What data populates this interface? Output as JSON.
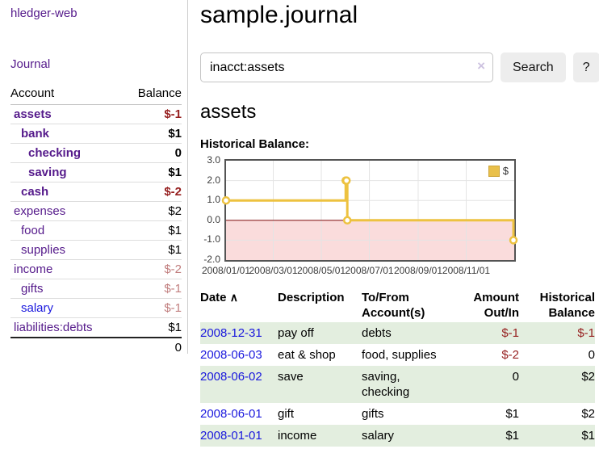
{
  "sidebar": {
    "brand": "hledger-web",
    "nav_journal": "Journal",
    "accounts_table": {
      "header_account": "Account",
      "header_balance": "Balance",
      "rows": [
        {
          "name": "assets",
          "balance": "$-1",
          "indent": 1,
          "bold": true,
          "balance_style": "neg",
          "link_style": "purple"
        },
        {
          "name": "bank",
          "balance": "$1",
          "indent": 2,
          "bold": true,
          "balance_style": "",
          "link_style": "purple"
        },
        {
          "name": "checking",
          "balance": "0",
          "indent": 3,
          "bold": true,
          "balance_style": "",
          "link_style": "purple"
        },
        {
          "name": "saving",
          "balance": "$1",
          "indent": 3,
          "bold": true,
          "balance_style": "",
          "link_style": "purple"
        },
        {
          "name": "cash",
          "balance": "$-2",
          "indent": 2,
          "bold": true,
          "balance_style": "neg",
          "link_style": "purple"
        },
        {
          "name": "expenses",
          "balance": "$2",
          "indent": 1,
          "bold": false,
          "balance_style": "",
          "link_style": "purple"
        },
        {
          "name": "food",
          "balance": "$1",
          "indent": 2,
          "bold": false,
          "balance_style": "",
          "link_style": "purple"
        },
        {
          "name": "supplies",
          "balance": "$1",
          "indent": 2,
          "bold": false,
          "balance_style": "",
          "link_style": "purple"
        },
        {
          "name": "income",
          "balance": "$-2",
          "indent": 1,
          "bold": false,
          "balance_style": "mneg",
          "link_style": "purple"
        },
        {
          "name": "gifts",
          "balance": "$-1",
          "indent": 2,
          "bold": false,
          "balance_style": "mneg",
          "link_style": "purple"
        },
        {
          "name": "salary",
          "balance": "$-1",
          "indent": 2,
          "bold": false,
          "balance_style": "mneg",
          "link_style": "blue"
        },
        {
          "name": "liabilities:debts",
          "balance": "$1",
          "indent": 1,
          "bold": false,
          "balance_style": "",
          "link_style": "purple"
        }
      ],
      "total": "0"
    }
  },
  "header": {
    "title": "sample.journal",
    "search": {
      "value": "inacct:assets",
      "clear_icon": "×",
      "search_button": "Search",
      "help_button": "?"
    }
  },
  "main": {
    "account_heading": "assets",
    "chart_title": "Historical Balance:"
  },
  "chart_data": {
    "type": "line",
    "title": "Historical Balance:",
    "step": true,
    "grid": true,
    "ylim": [
      -2,
      3
    ],
    "yticks": [
      3.0,
      2.0,
      1.0,
      0.0,
      -1.0,
      -2.0
    ],
    "xrange_days": [
      0,
      366
    ],
    "xticks": [
      {
        "label": "2008/01/01",
        "day": 0
      },
      {
        "label": "2008/03/01",
        "day": 60
      },
      {
        "label": "2008/05/01",
        "day": 121
      },
      {
        "label": "2008/07/01",
        "day": 182
      },
      {
        "label": "2008/09/01",
        "day": 244
      },
      {
        "label": "2008/11/01",
        "day": 305
      }
    ],
    "series": [
      {
        "name": "$",
        "color": "#edc240",
        "marker_fill": "#ffffff",
        "points": [
          {
            "date": "2008-01-01",
            "day": 0,
            "value": 1
          },
          {
            "date": "2008-06-01",
            "day": 152,
            "value": 2
          },
          {
            "date": "2008-06-02",
            "day": 153,
            "value": 2
          },
          {
            "date": "2008-06-03",
            "day": 154,
            "value": 0
          },
          {
            "date": "2008-12-31",
            "day": 365,
            "value": -1
          }
        ]
      }
    ],
    "negative_region": {
      "from": -2,
      "to": 0,
      "fill": "#fadcdc",
      "zero_line_color": "#8b2424"
    },
    "legend": {
      "position": "top-right",
      "entries": [
        "$"
      ]
    }
  },
  "register_table": {
    "headers": {
      "date": "Date",
      "sort_icon": "∧",
      "description": "Description",
      "accounts": "To/From\nAccount(s)",
      "amount": "Amount\nOut/In",
      "balance": "Historical\nBalance"
    },
    "rows": [
      {
        "date": "2008-12-31",
        "description": "pay off",
        "accounts": "debts",
        "amount": "$-1",
        "balance": "$-1",
        "amount_negative": true,
        "balance_negative": true
      },
      {
        "date": "2008-06-03",
        "description": "eat & shop",
        "accounts": "food, supplies",
        "amount": "$-2",
        "balance": "0",
        "amount_negative": true,
        "balance_negative": false
      },
      {
        "date": "2008-06-02",
        "description": "save",
        "accounts": "saving,\nchecking",
        "amount": "0",
        "balance": "$2",
        "amount_negative": false,
        "balance_negative": false
      },
      {
        "date": "2008-06-01",
        "description": "gift",
        "accounts": "gifts",
        "amount": "$1",
        "balance": "$2",
        "amount_negative": false,
        "balance_negative": false
      },
      {
        "date": "2008-01-01",
        "description": "income",
        "accounts": "salary",
        "amount": "$1",
        "balance": "$1",
        "amount_negative": false,
        "balance_negative": false
      }
    ]
  },
  "colors": {
    "link_purple": "#551a8b",
    "link_blue": "#1a18dd",
    "negative": "#961f1f",
    "muted_negative": "#c17e7e",
    "row_green": "#e3eedf",
    "chart_line_gold": "#edc240",
    "chart_negative_fill": "#fadcdc",
    "chart_zero_line": "#8b2424",
    "plot_border": "#545454",
    "button_bg": "#ededed"
  }
}
